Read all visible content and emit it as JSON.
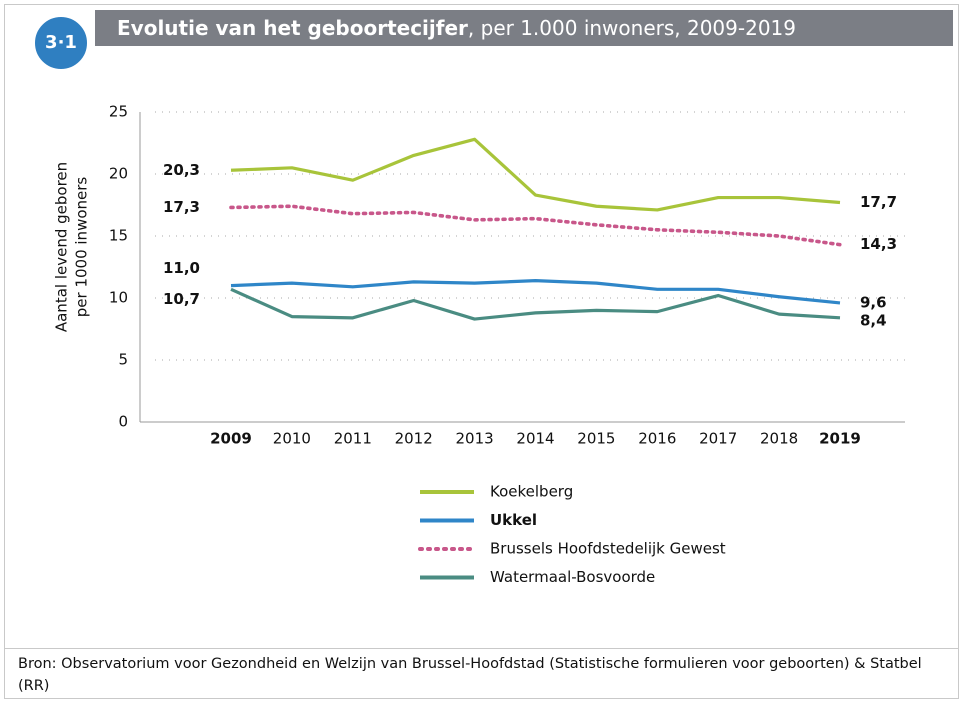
{
  "chart_data": {
    "type": "line",
    "badge": "3·1",
    "title": "Evolutie van het geboortecijfer",
    "subtitle": ", per 1.000 inwoners, 2009-2019",
    "ylabel": [
      "Aantal levend geboren",
      "per 1000 inwoners"
    ],
    "categories": [
      "2009",
      "2010",
      "2011",
      "2012",
      "2013",
      "2014",
      "2015",
      "2016",
      "2017",
      "2018",
      "2019"
    ],
    "series": [
      {
        "name": "Koekelberg",
        "color": "#a8c43a",
        "values": [
          20.3,
          20.5,
          19.5,
          21.5,
          22.8,
          18.3,
          17.4,
          17.1,
          18.1,
          18.1,
          17.7
        ],
        "value_labels": [
          "20,3",
          null,
          null,
          null,
          null,
          null,
          null,
          null,
          null,
          null,
          "17,7"
        ]
      },
      {
        "name": "Ukkel",
        "color": "#2f86c8",
        "bold": true,
        "values": [
          11.0,
          11.2,
          10.9,
          11.3,
          11.2,
          11.4,
          11.2,
          10.7,
          10.7,
          10.1,
          9.6
        ],
        "value_labels": [
          "11,0",
          null,
          null,
          null,
          null,
          null,
          null,
          null,
          null,
          null,
          "9,6"
        ]
      },
      {
        "name": "Brussels Hoofdstedelijk Gewest",
        "color": "#c8578a",
        "dashed": true,
        "values": [
          17.3,
          17.4,
          16.8,
          16.9,
          16.3,
          16.4,
          15.9,
          15.5,
          15.3,
          15.0,
          14.3
        ],
        "value_labels": [
          "17,3",
          null,
          null,
          null,
          null,
          null,
          null,
          null,
          null,
          null,
          "14,3"
        ]
      },
      {
        "name": "Watermaal-Bosvoorde",
        "color": "#4a8c82",
        "values": [
          10.7,
          8.5,
          8.4,
          9.8,
          8.3,
          8.8,
          9.0,
          8.9,
          10.2,
          8.7,
          8.4
        ],
        "value_labels": [
          "10,7",
          null,
          null,
          null,
          null,
          null,
          null,
          null,
          null,
          null,
          "8,4"
        ]
      }
    ],
    "ylim": [
      0,
      25
    ],
    "yticks": [
      0,
      5,
      10,
      15,
      20,
      25
    ],
    "grid": true,
    "source": "Bron: Observatorium voor Gezondheid en Welzijn van Brussel-Hoofdstad (Statistische formulieren voor geboorten) & Statbel (RR)"
  }
}
